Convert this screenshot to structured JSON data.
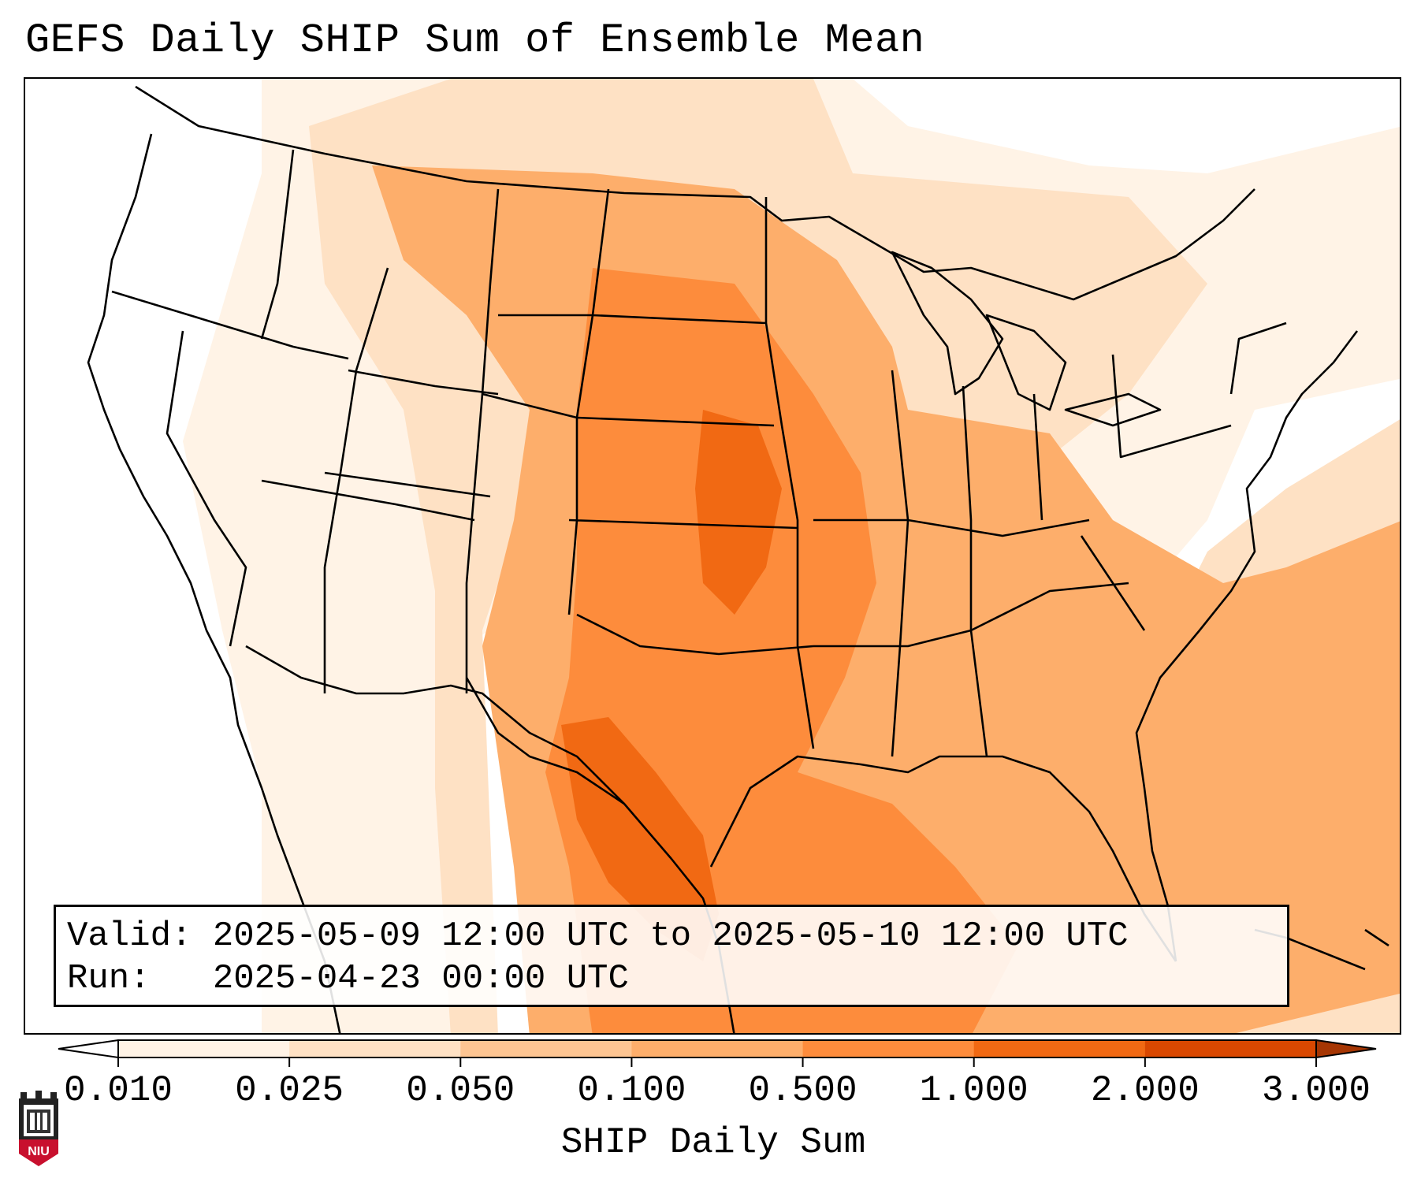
{
  "title": "GEFS Daily SHIP Sum of Ensemble Mean",
  "info": {
    "valid_label": "Valid:",
    "valid_value": "2025-05-09 12:00 UTC to 2025-05-10 12:00 UTC",
    "run_label": "Run:",
    "run_value": "2025-04-23 00:00 UTC"
  },
  "colorbar": {
    "label": "SHIP Daily Sum",
    "ticks": [
      "0.010",
      "0.025",
      "0.050",
      "0.100",
      "0.500",
      "1.000",
      "2.000",
      "3.000"
    ],
    "colors": [
      "#fff3e6",
      "#fee1c4",
      "#fdc592",
      "#fdae6b",
      "#fd8c3c",
      "#f16913",
      "#d94801"
    ],
    "over_color": "#a63603",
    "under_color": "#ffffff"
  },
  "logo": {
    "text": "NIU",
    "icon": "niu-tower-icon"
  }
}
